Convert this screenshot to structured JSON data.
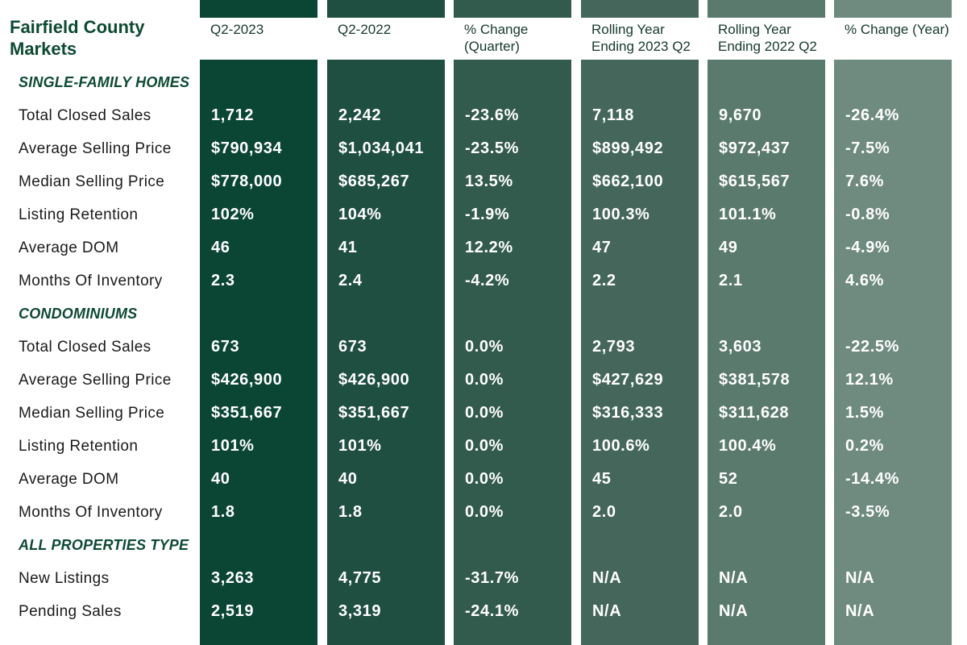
{
  "title": "Fairfield County Markets",
  "columns": [
    {
      "label": "Q2-2023",
      "color": "#0b4634"
    },
    {
      "label": "Q2-2022",
      "color": "#1f4f41"
    },
    {
      "label": "% Change (Quarter)",
      "color": "#325a4d"
    },
    {
      "label": "Rolling Year Ending 2023 Q2",
      "color": "#45675b"
    },
    {
      "label": "Rolling Year Ending 2022 Q2",
      "color": "#5b7a6e"
    },
    {
      "label": "% Change (Year)",
      "color": "#6f8b80"
    }
  ],
  "sections": [
    {
      "label": "SINGLE-FAMILY HOMES",
      "rows": [
        {
          "label": "Total Closed Sales",
          "values": [
            "1,712",
            "2,242",
            "-23.6%",
            "7,118",
            "9,670",
            "-26.4%"
          ]
        },
        {
          "label": "Average Selling Price",
          "values": [
            "$790,934",
            "$1,034,041",
            "-23.5%",
            "$899,492",
            "$972,437",
            "-7.5%"
          ]
        },
        {
          "label": "Median Selling Price",
          "values": [
            "$778,000",
            "$685,267",
            "13.5%",
            "$662,100",
            "$615,567",
            "7.6%"
          ]
        },
        {
          "label": "Listing Retention",
          "values": [
            "102%",
            "104%",
            "-1.9%",
            "100.3%",
            "101.1%",
            "-0.8%"
          ]
        },
        {
          "label": "Average DOM",
          "values": [
            "46",
            "41",
            "12.2%",
            "47",
            "49",
            "-4.9%"
          ]
        },
        {
          "label": "Months Of Inventory",
          "values": [
            "2.3",
            "2.4",
            "-4.2%",
            "2.2",
            "2.1",
            "4.6%"
          ]
        }
      ]
    },
    {
      "label": "CONDOMINIUMS",
      "rows": [
        {
          "label": "Total Closed Sales",
          "values": [
            "673",
            "673",
            "0.0%",
            "2,793",
            "3,603",
            "-22.5%"
          ]
        },
        {
          "label": "Average Selling Price",
          "values": [
            "$426,900",
            "$426,900",
            "0.0%",
            "$427,629",
            "$381,578",
            "12.1%"
          ]
        },
        {
          "label": "Median Selling Price",
          "values": [
            "$351,667",
            "$351,667",
            "0.0%",
            "$316,333",
            "$311,628",
            "1.5%"
          ]
        },
        {
          "label": "Listing Retention",
          "values": [
            "101%",
            "101%",
            "0.0%",
            "100.6%",
            "100.4%",
            "0.2%"
          ]
        },
        {
          "label": "Average DOM",
          "values": [
            "40",
            "40",
            "0.0%",
            "45",
            "52",
            "-14.4%"
          ]
        },
        {
          "label": "Months Of Inventory",
          "values": [
            "1.8",
            "1.8",
            "0.0%",
            "2.0",
            "2.0",
            "-3.5%"
          ]
        }
      ]
    },
    {
      "label": "ALL PROPERTIES TYPE",
      "rows": [
        {
          "label": "New Listings",
          "values": [
            "3,263",
            "4,775",
            "-31.7%",
            "N/A",
            "N/A",
            "N/A"
          ]
        },
        {
          "label": "Pending Sales",
          "values": [
            "2,519",
            "3,319",
            "-24.1%",
            "N/A",
            "N/A",
            "N/A"
          ]
        }
      ]
    }
  ]
}
